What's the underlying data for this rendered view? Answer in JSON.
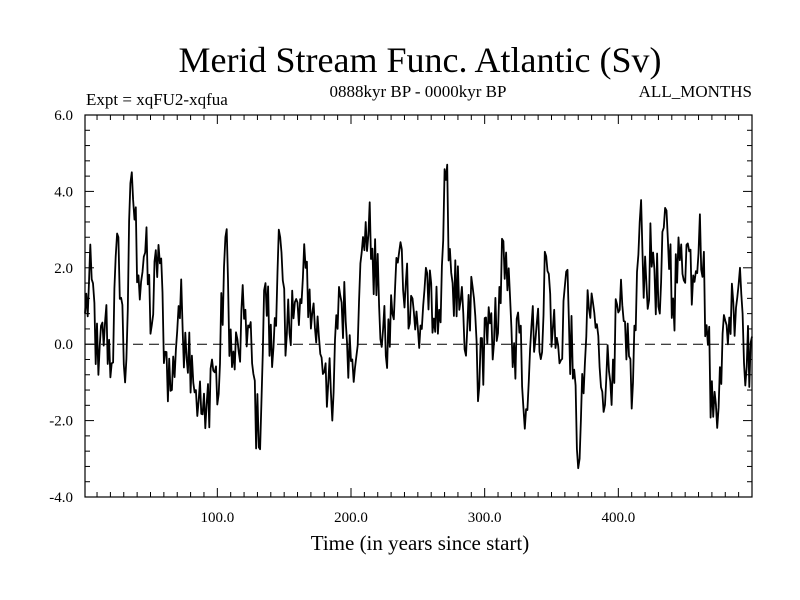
{
  "chart_data": {
    "type": "line",
    "title": "Merid Stream Func. Atlantic (Sv)",
    "subtitle_left": "Expt = xqFU2-xqfua",
    "subtitle_center": "0888kyr BP - 0000kyr BP",
    "subtitle_right": "ALL_MONTHS",
    "xlabel": "Time (in years since start)",
    "ylabel": "",
    "xlim": [
      1,
      500
    ],
    "ylim": [
      -4.0,
      6.0
    ],
    "xticks": [
      {
        "value": 100,
        "label": "100.0"
      },
      {
        "value": 200,
        "label": "200.0"
      },
      {
        "value": 300,
        "label": "300.0"
      },
      {
        "value": 400,
        "label": "400.0"
      }
    ],
    "yticks": [
      {
        "value": -4,
        "label": "-4.0"
      },
      {
        "value": -2,
        "label": "-2.0"
      },
      {
        "value": 0,
        "label": "0.0"
      },
      {
        "value": 2,
        "label": "2.0"
      },
      {
        "value": 4,
        "label": "4.0"
      },
      {
        "value": 6,
        "label": "6.0"
      }
    ],
    "zero_line": 0,
    "series": [
      {
        "name": "Merid Stream Func. Atlantic",
        "x": [
          1,
          6,
          11,
          16,
          21,
          26,
          31,
          36,
          41,
          46,
          51,
          56,
          61,
          66,
          71,
          76,
          81,
          86,
          91,
          96,
          101,
          106,
          111,
          116,
          121,
          126,
          131,
          136,
          141,
          146,
          151,
          156,
          161,
          166,
          171,
          176,
          181,
          186,
          191,
          196,
          201,
          206,
          211,
          216,
          221,
          226,
          231,
          236,
          241,
          246,
          251,
          256,
          261,
          266,
          271,
          276,
          281,
          286,
          291,
          296,
          301,
          306,
          311,
          316,
          321,
          326,
          331,
          336,
          341,
          346,
          351,
          356,
          361,
          366,
          371,
          376,
          381,
          386,
          391,
          396,
          401,
          406,
          411,
          416,
          421,
          426,
          431,
          436,
          441,
          446,
          451,
          456,
          461,
          466,
          471,
          476,
          481,
          486,
          491,
          496,
          500
        ],
        "values": [
          0.8,
          1.7,
          -0.8,
          0.6,
          -0.5,
          2.8,
          -1.0,
          4.5,
          1.8,
          2.4,
          0.5,
          2.6,
          -0.2,
          -1.2,
          1.0,
          0.3,
          -0.3,
          -1.5,
          -2.2,
          -0.4,
          -1.3,
          2.8,
          -0.6,
          -0.2,
          0.9,
          -0.5,
          -2.7,
          1.6,
          -0.6,
          3.0,
          -0.3,
          1.4,
          0.5,
          2.0,
          0.8,
          0.2,
          -0.5,
          -2.0,
          1.5,
          0.6,
          -0.4,
          1.1,
          3.2,
          2.5,
          1.0,
          -0.3,
          0.8,
          2.4,
          1.6,
          1.2,
          -0.1,
          2.0,
          0.3,
          0.9,
          4.3,
          1.6,
          0.9,
          -0.3,
          1.5,
          -1.1,
          0.7,
          -0.4,
          1.5,
          2.4,
          -0.6,
          0.3,
          -1.7,
          1.0,
          -0.2,
          2.3,
          0.4,
          -0.5,
          1.9,
          -0.9,
          -3.0,
          0.2,
          1.1,
          -0.6,
          -0.9,
          -0.4,
          0.9,
          -0.4,
          -1.0,
          3.2,
          1.6,
          2.4,
          0.8,
          3.5,
          1.2,
          2.2,
          2.6,
          1.8,
          3.4,
          0.5,
          -1.9,
          -0.6,
          0.5,
          1.1,
          2.0,
          -0.6,
          0.2
        ]
      }
    ]
  }
}
